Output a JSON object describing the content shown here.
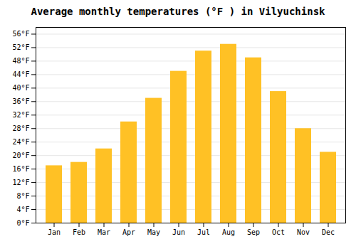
{
  "chart_data": {
    "type": "bar",
    "title": "Average monthly temperatures (°F ) in Vilyuchinsk",
    "categories": [
      "Jan",
      "Feb",
      "Mar",
      "Apr",
      "May",
      "Jun",
      "Jul",
      "Aug",
      "Sep",
      "Oct",
      "Nov",
      "Dec"
    ],
    "values": [
      17,
      18,
      22,
      30,
      37,
      45,
      51,
      53,
      49,
      39,
      28,
      21
    ],
    "color": "#FFC125",
    "ylim": [
      0,
      58
    ],
    "yticks": [
      {
        "value": 0,
        "label": "0°F"
      },
      {
        "value": 4,
        "label": "4°F"
      },
      {
        "value": 8,
        "label": "8°F"
      },
      {
        "value": 12,
        "label": "12°F"
      },
      {
        "value": 16,
        "label": "16°F"
      },
      {
        "value": 20,
        "label": "20°F"
      },
      {
        "value": 24,
        "label": "24°F"
      },
      {
        "value": 28,
        "label": "28°F"
      },
      {
        "value": 32,
        "label": "32°F"
      },
      {
        "value": 36,
        "label": "36°F"
      },
      {
        "value": 40,
        "label": "40°F"
      },
      {
        "value": 44,
        "label": "44°F"
      },
      {
        "value": 48,
        "label": "48°F"
      },
      {
        "value": 52,
        "label": "52°F"
      },
      {
        "value": 56,
        "label": "56°F"
      }
    ],
    "grid": true
  }
}
